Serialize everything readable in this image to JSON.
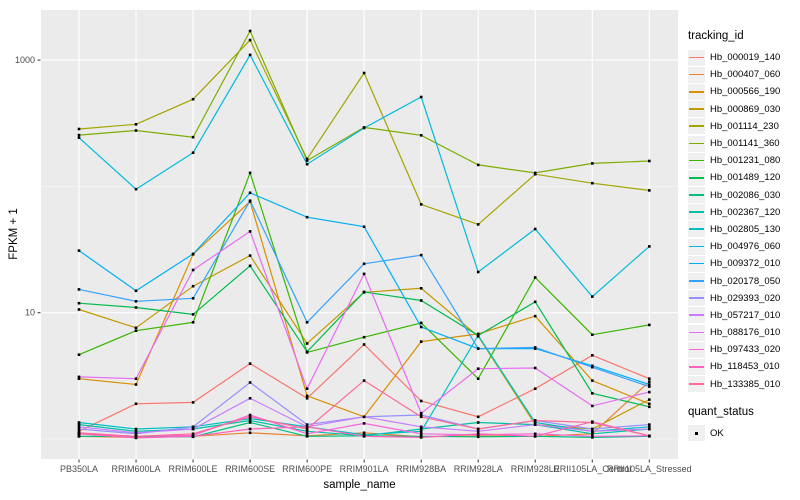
{
  "figure": {
    "x_axis_title": "sample_name",
    "y_axis_title": "FPKM + 1",
    "legend_title": "tracking_id",
    "quant_legend_title": "quant_status",
    "quant_ok_label": "OK"
  },
  "chart_data": {
    "type": "line",
    "xlabel": "sample_name",
    "ylabel": "FPKM + 1",
    "yscale": "log10",
    "ylim": [
      0.69,
      2500
    ],
    "ytick_labels": [
      "10",
      "1000"
    ],
    "ytick_values": [
      10,
      1000
    ],
    "minor_grid_values": [
      1,
      100
    ],
    "grid": "on",
    "panel_background": "#EBEBEB",
    "gridline_color": "#FFFFFF",
    "point_color": "#000000",
    "axis_text_color": "#4D4D4D",
    "legend_position": "right",
    "legend_title": "tracking_id",
    "quant_status_legend": {
      "title": "quant_status",
      "items": [
        {
          "label": "OK",
          "marker": "black-square"
        }
      ]
    },
    "categories": [
      "PB350LA",
      "RRIM600LA",
      "RRIM600LE",
      "RRIM600SE",
      "RRIM600PE",
      "RRIM901LA",
      "RRIM928BA",
      "RRIM928LA",
      "RRIM928LE",
      "RRII105LA_Control",
      "RRII105LA_Stressed"
    ],
    "series": [
      {
        "name": "Hb_000019_140",
        "color": "#F8766D",
        "values": [
          1.15,
          1.9,
          1.95,
          3.95,
          2.1,
          5.6,
          2.0,
          1.5,
          2.5,
          4.6,
          3.0
        ]
      },
      {
        "name": "Hb_000407_060",
        "color": "#EA8331",
        "values": [
          1.05,
          1.03,
          1.05,
          1.12,
          1.06,
          1.12,
          1.04,
          1.06,
          1.05,
          1.1,
          2.85
        ]
      },
      {
        "name": "Hb_000566_190",
        "color": "#D89000",
        "values": [
          3.0,
          2.7,
          29.0,
          76.0,
          2.2,
          1.5,
          5.9,
          6.8,
          9.4,
          2.9,
          1.9
        ]
      },
      {
        "name": "Hb_000869_030",
        "color": "#C09B00",
        "values": [
          10.6,
          7.6,
          16.2,
          28.3,
          5.7,
          14.5,
          15.6,
          6.5,
          1.3,
          1.2,
          2.05
        ]
      },
      {
        "name": "Hb_001114_230",
        "color": "#A3A500",
        "values": [
          285,
          310,
          490,
          1440,
          165,
          790,
          72,
          50,
          125,
          106,
          93
        ]
      },
      {
        "name": "Hb_001141_360",
        "color": "#7CAE00",
        "values": [
          255,
          277,
          245,
          1700,
          160,
          293,
          254,
          148,
          128,
          152,
          159
        ]
      },
      {
        "name": "Hb_001231_080",
        "color": "#39B600",
        "values": [
          4.65,
          7.2,
          8.4,
          128,
          4.85,
          6.4,
          8.3,
          3.0,
          19.0,
          6.7,
          8.0
        ]
      },
      {
        "name": "Hb_001489_120",
        "color": "#00BB4E",
        "values": [
          11.9,
          11.0,
          9.7,
          23.5,
          4.9,
          14.6,
          12.5,
          6.6,
          12.2,
          2.3,
          1.8
        ]
      },
      {
        "name": "Hb_002086_030",
        "color": "#00BF7D",
        "values": [
          1.05,
          1.05,
          1.04,
          1.35,
          1.05,
          1.06,
          1.05,
          1.04,
          1.05,
          1.03,
          1.05
        ]
      },
      {
        "name": "Hb_002367_120",
        "color": "#00C1A3",
        "values": [
          1.3,
          1.15,
          1.2,
          1.4,
          1.15,
          1.06,
          1.2,
          1.35,
          1.3,
          1.1,
          1.2
        ]
      },
      {
        "name": "Hb_002805_130",
        "color": "#00BFC4",
        "values": [
          1.35,
          1.2,
          1.25,
          1.45,
          1.25,
          1.08,
          1.15,
          6.6,
          1.35,
          1.15,
          1.25
        ]
      },
      {
        "name": "Hb_004976_060",
        "color": "#00BADE",
        "values": [
          243,
          95,
          185,
          1100,
          150,
          290,
          510,
          21,
          46,
          13.4,
          33.5
        ]
      },
      {
        "name": "Hb_009372_010",
        "color": "#00B0F6",
        "values": [
          31,
          14.9,
          29.2,
          89,
          57,
          48,
          7.7,
          5.2,
          5.2,
          3.8,
          2.7
        ]
      },
      {
        "name": "Hb_020178_050",
        "color": "#35A2FF",
        "values": [
          15.3,
          12.3,
          13.0,
          77,
          8.4,
          24.4,
          28.6,
          5.2,
          5.3,
          3.7,
          2.6
        ]
      },
      {
        "name": "Hb_029393_020",
        "color": "#9590FF",
        "values": [
          1.2,
          1.1,
          1.25,
          2.8,
          1.3,
          1.5,
          1.55,
          1.2,
          1.4,
          1.2,
          1.3
        ]
      },
      {
        "name": "Hb_057217_010",
        "color": "#C77CFF",
        "values": [
          1.25,
          1.12,
          1.2,
          2.1,
          1.25,
          1.5,
          1.25,
          1.15,
          1.3,
          1.15,
          1.2
        ]
      },
      {
        "name": "Hb_088176_010",
        "color": "#E76BF3",
        "values": [
          3.1,
          3.0,
          21.8,
          44,
          2.5,
          20.3,
          1.6,
          3.6,
          3.65,
          1.83,
          2.35
        ]
      },
      {
        "name": "Hb_097433_020",
        "color": "#FA62DB",
        "values": [
          1.1,
          1.05,
          1.07,
          1.55,
          1.1,
          1.33,
          1.1,
          1.08,
          1.1,
          1.05,
          1.06
        ]
      },
      {
        "name": "Hb_118453_010",
        "color": "#FF62BC",
        "values": [
          1.1,
          1.02,
          1.05,
          1.2,
          1.25,
          1.05,
          1.03,
          1.1,
          1.05,
          1.37,
          1.06
        ]
      },
      {
        "name": "Hb_133385_010",
        "color": "#FF6A98",
        "values": [
          1.12,
          1.05,
          1.1,
          1.5,
          1.2,
          2.9,
          1.5,
          1.2,
          1.4,
          1.35,
          1.06
        ]
      }
    ]
  }
}
